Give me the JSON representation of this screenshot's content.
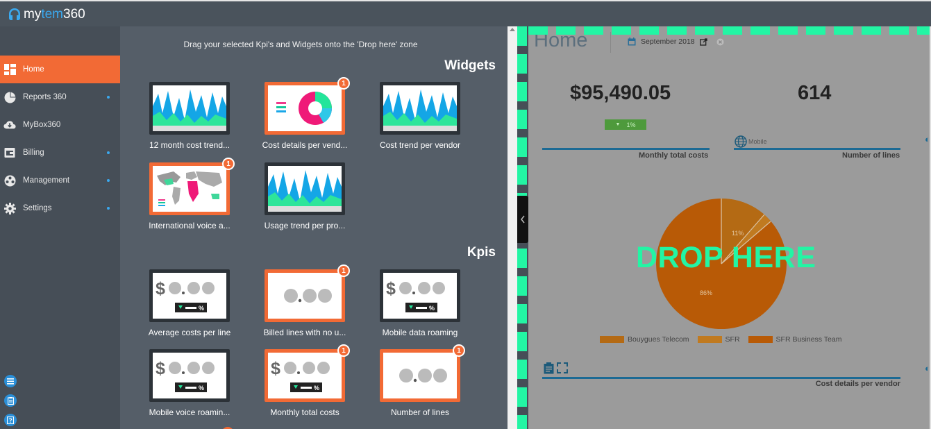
{
  "app": {
    "logo_prefix": "my",
    "logo_mid": "tem",
    "logo_suffix": "360"
  },
  "sidebar": {
    "items": [
      {
        "label": "Home",
        "icon": "dashboard-icon",
        "active": true,
        "dot": false
      },
      {
        "label": "Reports 360",
        "icon": "pie-chart-icon",
        "active": false,
        "dot": true
      },
      {
        "label": "MyBox360",
        "icon": "cloud-icon",
        "active": false,
        "dot": false
      },
      {
        "label": "Billing",
        "icon": "wallet-icon",
        "active": false,
        "dot": true
      },
      {
        "label": "Management",
        "icon": "film-reel-icon",
        "active": false,
        "dot": true
      },
      {
        "label": "Settings",
        "icon": "gear-icon",
        "active": false,
        "dot": true
      }
    ],
    "bottom_icons": [
      "list-icon",
      "clipboard-icon",
      "help-icon"
    ]
  },
  "palette": {
    "hint": "Drag your selected Kpi's and Widgets onto the 'Drop here' zone",
    "widgets_title": "Widgets",
    "kpis_title": "Kpis",
    "widgets": [
      {
        "label": "12 month cost trend...",
        "selected": false,
        "badge": ""
      },
      {
        "label": "Cost details per vend...",
        "selected": true,
        "badge": "1"
      },
      {
        "label": "Cost trend per vendor",
        "selected": false,
        "badge": ""
      },
      {
        "label": "International voice a...",
        "selected": true,
        "badge": "1"
      },
      {
        "label": "Usage trend per pro...",
        "selected": false,
        "badge": ""
      }
    ],
    "kpis": [
      {
        "label": "Average costs per line",
        "selected": false,
        "badge": ""
      },
      {
        "label": "Billed lines with no u...",
        "selected": true,
        "badge": "1"
      },
      {
        "label": "Mobile data roaming",
        "selected": false,
        "badge": ""
      },
      {
        "label": "Mobile voice roamin...",
        "selected": false,
        "badge": ""
      },
      {
        "label": "Monthly total costs",
        "selected": true,
        "badge": "1"
      },
      {
        "label": "Number of lines",
        "selected": true,
        "badge": "1"
      }
    ],
    "kpi_thumb_dollar": "$",
    "kpi_thumb_pct": "%"
  },
  "dashboard": {
    "title": "Home",
    "date": "September 2018",
    "kpi1_value": "$95,490.05",
    "kpi1_trend": "1%",
    "kpi1_label": "Monthly total costs",
    "kpi2_value": "614",
    "kpi2_tag": "Mobile",
    "kpi2_label": "Number of lines",
    "drop_text": "DROP HERE",
    "pie_label_small": "11%",
    "pie_label_big": "86%",
    "legend": [
      "Bouygues Telecom",
      "SFR",
      "SFR Business Team"
    ],
    "bottom_label": "Cost details per vendor",
    "colors": {
      "pie_main": "#b85a06",
      "pie_second": "#b46a14",
      "pie_third": "#c07a20",
      "drop": "#23f5a4",
      "accent": "#f26a35"
    }
  }
}
